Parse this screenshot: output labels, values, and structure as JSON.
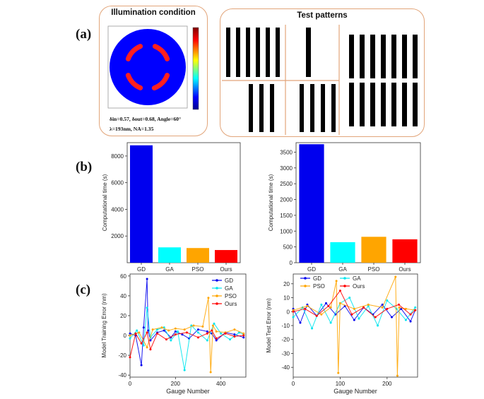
{
  "panels": {
    "a": "(a)",
    "b": "(b)",
    "c": "(c)"
  },
  "illumination": {
    "title": "Illumination condition",
    "param_line1": "δin=0.57, δout=0.68, Angle=60°",
    "param_line2": "λ=193nm, NA=1.35",
    "colors": {
      "background": "#0000ff",
      "poles": "#ff1f1f"
    }
  },
  "test_patterns": {
    "title": "Test patterns",
    "bar_color": "#000000"
  },
  "chart_data": [
    {
      "type": "bar",
      "categories": [
        "GD",
        "GA",
        "PSO",
        "Ours"
      ],
      "values": [
        8800,
        1150,
        1100,
        950
      ],
      "colors": [
        "#0000ee",
        "#00ffff",
        "#ffa500",
        "#ff0000"
      ],
      "ylabel": "Computational time (s)",
      "ylim": [
        0,
        9000
      ],
      "yticks": [
        2000,
        4000,
        6000,
        8000
      ]
    },
    {
      "type": "bar",
      "categories": [
        "GD",
        "GA",
        "PSO",
        "Ours"
      ],
      "values": [
        3750,
        650,
        820,
        740
      ],
      "colors": [
        "#0000ee",
        "#00ffff",
        "#ffa500",
        "#ff0000"
      ],
      "ylabel": "Computational time (s)",
      "ylim": [
        0,
        3800
      ],
      "yticks": [
        0,
        500,
        1000,
        1500,
        2000,
        2500,
        3000,
        3500
      ]
    },
    {
      "type": "line",
      "xlabel": "Gauge Number",
      "ylabel": "Model Training Error (nm)",
      "xlim": [
        0,
        510
      ],
      "ylim": [
        -42,
        62
      ],
      "xticks": [
        0,
        200,
        400
      ],
      "yticks": [
        -40,
        -20,
        0,
        20,
        40,
        60
      ],
      "legend": "top-right",
      "series": [
        {
          "name": "GD",
          "color": "#0000ee",
          "x": [
            0,
            25,
            50,
            60,
            75,
            80,
            90,
            120,
            150,
            180,
            200,
            230,
            260,
            300,
            340,
            360,
            380,
            420,
            460,
            500
          ],
          "y": [
            2,
            0,
            -30,
            8,
            57,
            5,
            -5,
            3,
            5,
            -2,
            4,
            1,
            -3,
            6,
            4,
            2,
            -5,
            3,
            1,
            -2
          ]
        },
        {
          "name": "GA",
          "color": "#00e5ee",
          "x": [
            0,
            30,
            60,
            75,
            90,
            120,
            150,
            180,
            210,
            240,
            270,
            300,
            340,
            370,
            400,
            440,
            480,
            500
          ],
          "y": [
            -3,
            5,
            -10,
            28,
            -2,
            6,
            8,
            -5,
            4,
            -35,
            10,
            3,
            -5,
            12,
            2,
            -4,
            3,
            1
          ]
        },
        {
          "name": "PSO",
          "color": "#ffa500",
          "x": [
            0,
            40,
            75,
            100,
            140,
            170,
            200,
            240,
            280,
            320,
            345,
            355,
            365,
            380,
            420,
            460,
            500
          ],
          "y": [
            0,
            3,
            -12,
            6,
            8,
            5,
            7,
            6,
            10,
            9,
            38,
            -37,
            10,
            4,
            3,
            6,
            2
          ]
        },
        {
          "name": "Ours",
          "color": "#ff0000",
          "x": [
            0,
            25,
            50,
            75,
            90,
            120,
            160,
            200,
            250,
            300,
            340,
            360,
            380,
            420,
            460,
            500
          ],
          "y": [
            -22,
            2,
            -8,
            3,
            -14,
            2,
            -4,
            1,
            3,
            -2,
            2,
            5,
            -3,
            2,
            -1,
            0
          ]
        }
      ]
    },
    {
      "type": "line",
      "xlabel": "Gauge Number",
      "ylabel": "Model Test Error (nm)",
      "xlim": [
        0,
        265
      ],
      "ylim": [
        -47,
        27
      ],
      "xticks": [
        0,
        100,
        200
      ],
      "yticks": [
        -40,
        -30,
        -20,
        -10,
        0,
        10,
        20
      ],
      "legend": "top",
      "series": [
        {
          "name": "GD",
          "color": "#0000ee",
          "x": [
            0,
            15,
            30,
            50,
            70,
            90,
            110,
            130,
            150,
            170,
            190,
            210,
            230,
            250,
            260
          ],
          "y": [
            2,
            -8,
            5,
            -3,
            6,
            -2,
            4,
            -6,
            3,
            -2,
            5,
            -4,
            2,
            -7,
            1
          ]
        },
        {
          "name": "GA",
          "color": "#00e5ee",
          "x": [
            0,
            20,
            40,
            60,
            80,
            100,
            120,
            140,
            160,
            180,
            200,
            220,
            240,
            260
          ],
          "y": [
            -4,
            3,
            -12,
            5,
            -8,
            6,
            10,
            -5,
            4,
            -10,
            8,
            2,
            -6,
            3
          ]
        },
        {
          "name": "PSO",
          "color": "#ffa500",
          "x": [
            0,
            30,
            60,
            80,
            92,
            96,
            100,
            130,
            160,
            190,
            218,
            222,
            226,
            240,
            260
          ],
          "y": [
            1,
            4,
            -2,
            3,
            22,
            -44,
            6,
            2,
            5,
            3,
            25,
            -46,
            3,
            2,
            1
          ]
        },
        {
          "name": "Ours",
          "color": "#ff0000",
          "x": [
            0,
            25,
            50,
            75,
            100,
            125,
            150,
            175,
            200,
            225,
            250,
            260
          ],
          "y": [
            0,
            2,
            -3,
            4,
            15,
            -2,
            3,
            -4,
            2,
            5,
            -2,
            1
          ]
        }
      ]
    }
  ]
}
